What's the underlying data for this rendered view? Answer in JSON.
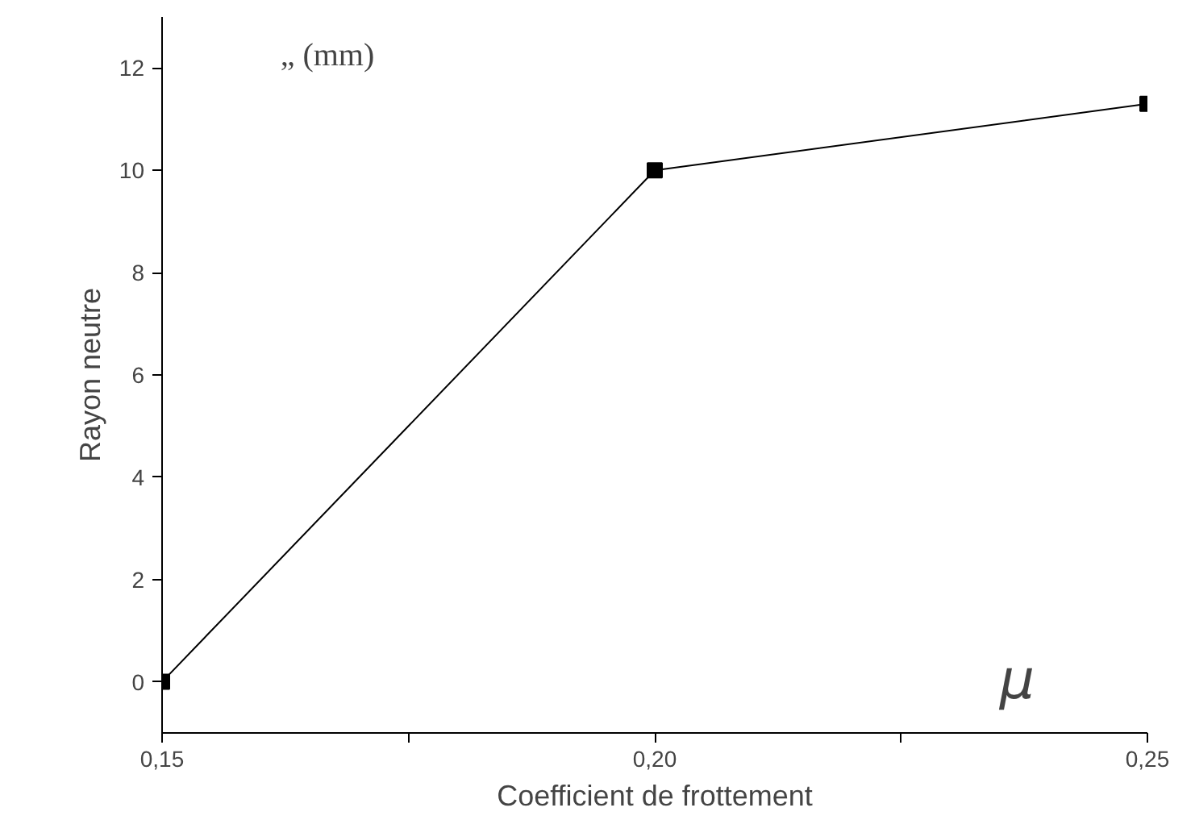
{
  "chart_data": {
    "type": "line",
    "xlabel": "Coefficient de frottement",
    "ylabel": "Rayon neutre",
    "x": [
      0.15,
      0.2,
      0.25
    ],
    "series": [
      {
        "color": "#000000",
        "values": [
          0,
          10,
          11.3
        ]
      }
    ],
    "xlim": [
      0.15,
      0.25
    ],
    "ylim": [
      -1,
      13
    ],
    "xticks": [
      {
        "value": 0.15,
        "label": "0,15"
      },
      {
        "value": 0.175,
        "label": null
      },
      {
        "value": 0.2,
        "label": "0,20"
      },
      {
        "value": 0.225,
        "label": null
      },
      {
        "value": 0.25,
        "label": "0,25"
      }
    ],
    "yticks": [
      0,
      2,
      4,
      6,
      8,
      10,
      12
    ],
    "annotations": [
      "„ (mm)",
      "μ"
    ],
    "marker": "square",
    "line_style": "solid"
  }
}
